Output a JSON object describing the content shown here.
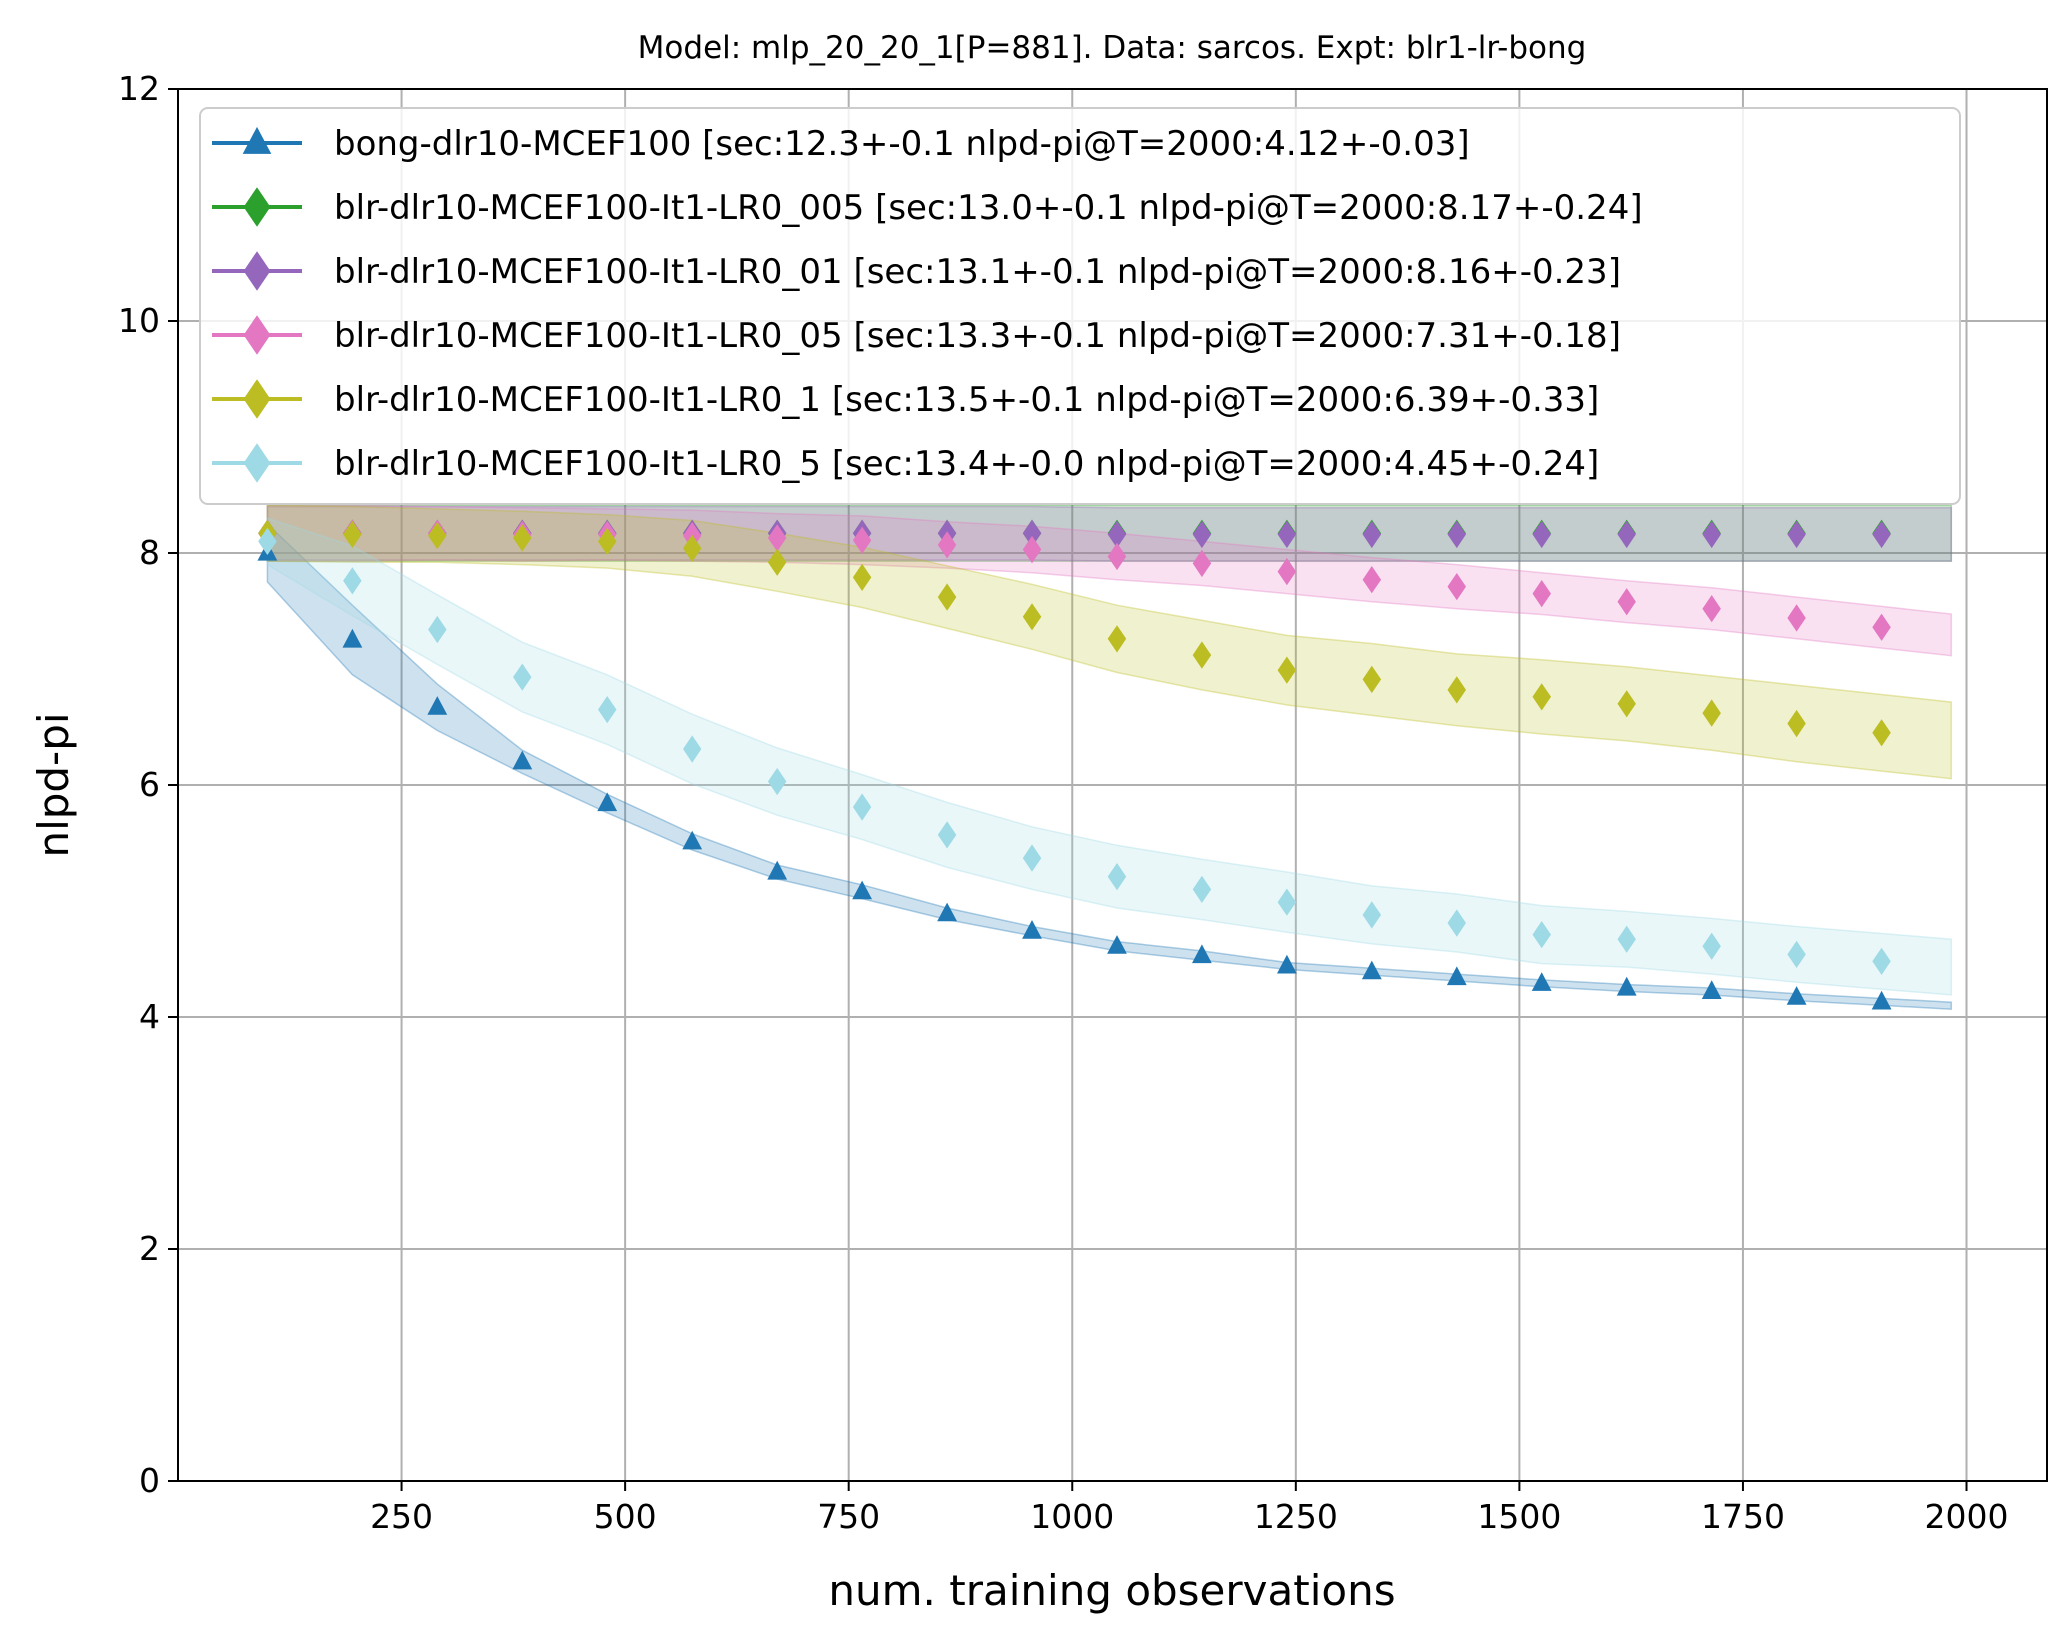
{
  "chart_data": {
    "type": "line",
    "title": "Model: mlp_20_20_1[P=881]. Data: sarcos. Expt: blr1-lr-bong",
    "xlabel": "num. training observations",
    "ylabel": "nlpd-pi",
    "xlim": [
      0,
      2090
    ],
    "ylim": [
      0,
      12
    ],
    "xticks": [
      250,
      500,
      750,
      1000,
      1250,
      1500,
      1750,
      2000
    ],
    "yticks": [
      0,
      2,
      4,
      6,
      8,
      10,
      12
    ],
    "grid": true,
    "legend_position": "top-left",
    "x": [
      100,
      195,
      290,
      385,
      480,
      575,
      670,
      765,
      860,
      955,
      1050,
      1145,
      1240,
      1335,
      1430,
      1525,
      1620,
      1715,
      1810,
      1905
    ],
    "series": [
      {
        "name": "bong-dlr10-MCEF100 [sec:12.3+-0.1 nlpd-pi@T=2000:4.12+-0.03]",
        "color": "#1f77b4",
        "marker": "triangle",
        "values": [
          8.0,
          7.25,
          6.67,
          6.2,
          5.84,
          5.51,
          5.25,
          5.08,
          4.89,
          4.74,
          4.61,
          4.53,
          4.44,
          4.39,
          4.34,
          4.29,
          4.25,
          4.22,
          4.17,
          4.13
        ],
        "band_halfwidth": [
          0.25,
          0.3,
          0.2,
          0.1,
          0.08,
          0.07,
          0.06,
          0.06,
          0.05,
          0.04,
          0.04,
          0.04,
          0.03,
          0.03,
          0.03,
          0.03,
          0.03,
          0.03,
          0.03,
          0.03
        ]
      },
      {
        "name": "blr-dlr10-MCEF100-It1-LR0_005 [sec:13.0+-0.1 nlpd-pi@T=2000:8.17+-0.24]",
        "color": "#2ca02c",
        "marker": "diamond",
        "values": [
          8.17,
          8.17,
          8.17,
          8.17,
          8.17,
          8.17,
          8.17,
          8.17,
          8.17,
          8.17,
          8.17,
          8.17,
          8.17,
          8.17,
          8.17,
          8.17,
          8.17,
          8.17,
          8.17,
          8.17
        ],
        "band_halfwidth": [
          0.24,
          0.24,
          0.24,
          0.24,
          0.24,
          0.24,
          0.24,
          0.24,
          0.24,
          0.24,
          0.24,
          0.24,
          0.24,
          0.24,
          0.24,
          0.24,
          0.24,
          0.24,
          0.24,
          0.24
        ]
      },
      {
        "name": "blr-dlr10-MCEF100-It1-LR0_01 [sec:13.1+-0.1 nlpd-pi@T=2000:8.16+-0.23]",
        "color": "#9467bd",
        "marker": "diamond",
        "values": [
          8.17,
          8.17,
          8.17,
          8.17,
          8.17,
          8.17,
          8.17,
          8.17,
          8.17,
          8.17,
          8.16,
          8.16,
          8.16,
          8.16,
          8.16,
          8.16,
          8.16,
          8.16,
          8.16,
          8.16
        ],
        "band_halfwidth": [
          0.23,
          0.23,
          0.23,
          0.23,
          0.23,
          0.23,
          0.23,
          0.23,
          0.23,
          0.23,
          0.23,
          0.23,
          0.23,
          0.23,
          0.23,
          0.23,
          0.23,
          0.23,
          0.23,
          0.23
        ]
      },
      {
        "name": "blr-dlr10-MCEF100-It1-LR0_05 [sec:13.3+-0.1 nlpd-pi@T=2000:7.31+-0.18]",
        "color": "#e377c2",
        "marker": "diamond",
        "values": [
          8.17,
          8.17,
          8.17,
          8.16,
          8.16,
          8.15,
          8.13,
          8.11,
          8.07,
          8.03,
          7.97,
          7.91,
          7.84,
          7.77,
          7.71,
          7.65,
          7.58,
          7.52,
          7.44,
          7.36
        ],
        "band_halfwidth": [
          0.24,
          0.24,
          0.23,
          0.23,
          0.22,
          0.22,
          0.21,
          0.21,
          0.2,
          0.2,
          0.2,
          0.19,
          0.19,
          0.19,
          0.19,
          0.18,
          0.18,
          0.18,
          0.18,
          0.18
        ]
      },
      {
        "name": "blr-dlr10-MCEF100-It1-LR0_1 [sec:13.5+-0.1 nlpd-pi@T=2000:6.39+-0.33]",
        "color": "#bcbd22",
        "marker": "diamond",
        "values": [
          8.17,
          8.16,
          8.15,
          8.13,
          8.1,
          8.04,
          7.92,
          7.79,
          7.62,
          7.45,
          7.26,
          7.12,
          6.99,
          6.91,
          6.82,
          6.76,
          6.7,
          6.62,
          6.53,
          6.45
        ],
        "band_halfwidth": [
          0.24,
          0.24,
          0.23,
          0.23,
          0.23,
          0.24,
          0.25,
          0.26,
          0.27,
          0.28,
          0.29,
          0.3,
          0.3,
          0.31,
          0.31,
          0.32,
          0.32,
          0.32,
          0.33,
          0.33
        ]
      },
      {
        "name": "blr-dlr10-MCEF100-It1-LR0_5 [sec:13.4+-0.0 nlpd-pi@T=2000:4.45+-0.24]",
        "color": "#9edae5",
        "marker": "diamond",
        "values": [
          8.1,
          7.76,
          7.34,
          6.93,
          6.65,
          6.31,
          6.03,
          5.81,
          5.57,
          5.37,
          5.21,
          5.1,
          4.99,
          4.88,
          4.81,
          4.71,
          4.67,
          4.61,
          4.54,
          4.48
        ],
        "band_halfwidth": [
          0.2,
          0.3,
          0.3,
          0.3,
          0.3,
          0.3,
          0.29,
          0.28,
          0.28,
          0.27,
          0.27,
          0.26,
          0.26,
          0.25,
          0.25,
          0.25,
          0.24,
          0.24,
          0.24,
          0.24
        ]
      }
    ]
  }
}
